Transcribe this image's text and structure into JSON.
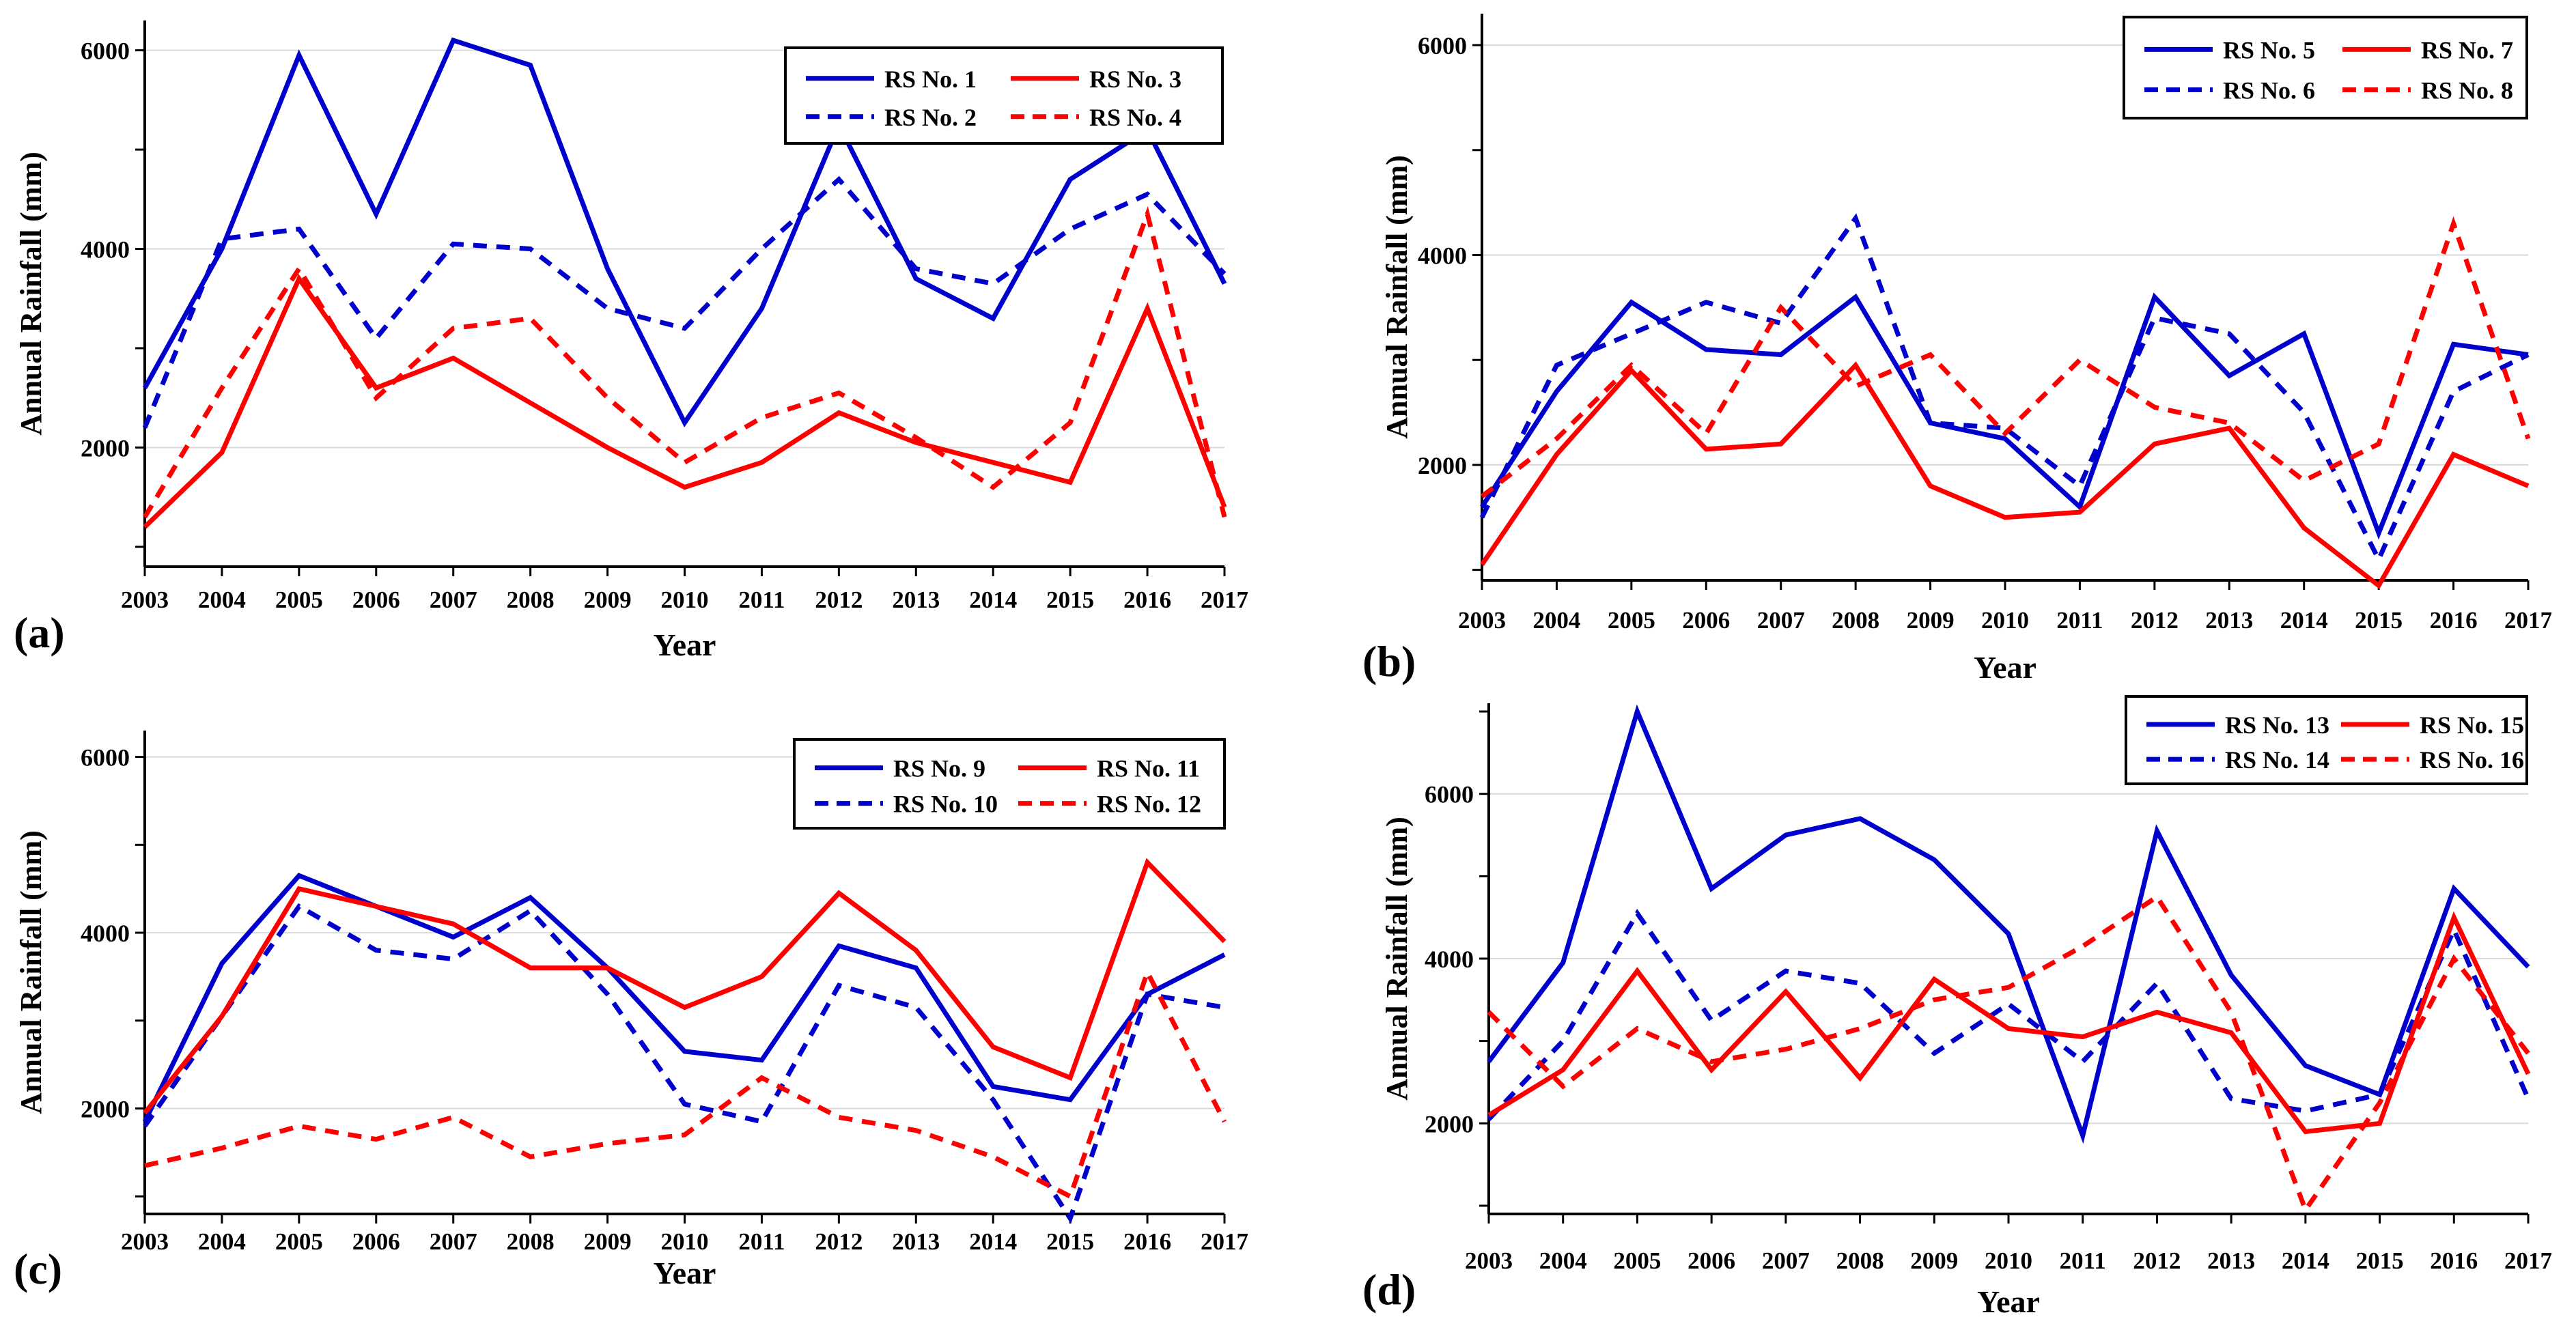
{
  "chart_data": [
    {
      "panel_label": "(a)",
      "type": "line",
      "xlabel": "Year",
      "ylabel": "Annual Rainfall (mm)",
      "ylim": [
        800,
        6300
      ],
      "yticks": [
        2000,
        4000,
        6000
      ],
      "categories": [
        "2003",
        "2004",
        "2005",
        "2006",
        "2007",
        "2008",
        "2009",
        "2010",
        "2011",
        "2012",
        "2013",
        "2014",
        "2015",
        "2016",
        "2017"
      ],
      "legend_position": "top-right",
      "series": [
        {
          "name": "RS No. 1",
          "color": "#0000cc",
          "dashed": false,
          "values": [
            2600,
            4000,
            5950,
            4350,
            6100,
            5850,
            3800,
            2250,
            3400,
            5250,
            3700,
            3300,
            4700,
            5200,
            3650
          ]
        },
        {
          "name": "RS No. 2",
          "color": "#0000cc",
          "dashed": true,
          "values": [
            2200,
            4100,
            4200,
            3100,
            4050,
            4000,
            3400,
            3200,
            4000,
            4700,
            3800,
            3650,
            4200,
            4550,
            3750
          ]
        },
        {
          "name": "RS No. 3",
          "color": "#ff0000",
          "dashed": false,
          "values": [
            1200,
            1950,
            3700,
            2600,
            2900,
            2450,
            2000,
            1600,
            1850,
            2350,
            2050,
            1850,
            1650,
            3400,
            1400
          ]
        },
        {
          "name": "RS No. 4",
          "color": "#ff0000",
          "dashed": true,
          "values": [
            1300,
            2600,
            3800,
            2500,
            3200,
            3300,
            2500,
            1850,
            2300,
            2550,
            2100,
            1600,
            2250,
            4350,
            1300
          ]
        }
      ]
    },
    {
      "panel_label": "(b)",
      "type": "line",
      "xlabel": "Year",
      "ylabel": "Annual Rainfall (mm)",
      "ylim": [
        900,
        6300
      ],
      "yticks": [
        2000,
        4000,
        6000
      ],
      "categories": [
        "2003",
        "2004",
        "2005",
        "2006",
        "2007",
        "2008",
        "2009",
        "2010",
        "2011",
        "2012",
        "2013",
        "2014",
        "2015",
        "2016",
        "2017"
      ],
      "legend_position": "top-right",
      "series": [
        {
          "name": "RS No. 5",
          "color": "#0000cc",
          "dashed": false,
          "values": [
            1600,
            2700,
            3550,
            3100,
            3050,
            3600,
            2400,
            2250,
            1600,
            3600,
            2850,
            3250,
            1350,
            3150,
            3050
          ]
        },
        {
          "name": "RS No. 6",
          "color": "#0000cc",
          "dashed": true,
          "values": [
            1500,
            2950,
            3250,
            3550,
            3350,
            4350,
            2400,
            2350,
            1800,
            3400,
            3250,
            2500,
            1100,
            2700,
            3050
          ]
        },
        {
          "name": "RS No. 7",
          "color": "#ff0000",
          "dashed": false,
          "values": [
            1050,
            2100,
            2900,
            2150,
            2200,
            2950,
            1800,
            1500,
            1550,
            2200,
            2350,
            1400,
            850,
            2100,
            1800
          ]
        },
        {
          "name": "RS No. 8",
          "color": "#ff0000",
          "dashed": true,
          "values": [
            1700,
            2250,
            2950,
            2300,
            3500,
            2750,
            3050,
            2300,
            3000,
            2550,
            2400,
            1850,
            2200,
            4300,
            2250
          ]
        }
      ]
    },
    {
      "panel_label": "(c)",
      "type": "line",
      "xlabel": "Year",
      "ylabel": "Annual Rainfall (mm)",
      "ylim": [
        800,
        6300
      ],
      "yticks": [
        2000,
        4000,
        6000
      ],
      "categories": [
        "2003",
        "2004",
        "2005",
        "2006",
        "2007",
        "2008",
        "2009",
        "2010",
        "2011",
        "2012",
        "2013",
        "2014",
        "2015",
        "2016",
        "2017"
      ],
      "legend_position": "top-right",
      "series": [
        {
          "name": "RS No. 9",
          "color": "#0000cc",
          "dashed": false,
          "values": [
            1850,
            3650,
            4650,
            4300,
            3950,
            4400,
            3600,
            2650,
            2550,
            3850,
            3600,
            2250,
            2100,
            3300,
            3750
          ]
        },
        {
          "name": "RS No. 10",
          "color": "#0000cc",
          "dashed": true,
          "values": [
            1800,
            3050,
            4300,
            3800,
            3700,
            4250,
            3300,
            2050,
            1850,
            3400,
            3150,
            2100,
            750,
            3300,
            3150
          ]
        },
        {
          "name": "RS No. 11",
          "color": "#ff0000",
          "dashed": false,
          "values": [
            1950,
            3050,
            4500,
            4300,
            4100,
            3600,
            3600,
            3150,
            3500,
            4450,
            3800,
            2700,
            2350,
            4800,
            3900
          ]
        },
        {
          "name": "RS No. 12",
          "color": "#ff0000",
          "dashed": true,
          "values": [
            1350,
            1550,
            1800,
            1650,
            1900,
            1450,
            1600,
            1700,
            2350,
            1900,
            1750,
            1450,
            1000,
            3550,
            1850
          ]
        }
      ]
    },
    {
      "panel_label": "(d)",
      "type": "line",
      "xlabel": "Year",
      "ylabel": "Annual Rainfall (mm)",
      "ylim": [
        900,
        7100
      ],
      "yticks": [
        2000,
        4000,
        6000
      ],
      "categories": [
        "2003",
        "2004",
        "2005",
        "2006",
        "2007",
        "2008",
        "2009",
        "2010",
        "2011",
        "2012",
        "2013",
        "2014",
        "2015",
        "2016",
        "2017"
      ],
      "legend_position": "top-right",
      "series": [
        {
          "name": "RS No. 13",
          "color": "#0000cc",
          "dashed": false,
          "values": [
            2750,
            3950,
            7000,
            4850,
            5500,
            5700,
            5200,
            4300,
            1850,
            5550,
            3800,
            2700,
            2350,
            4850,
            3900
          ]
        },
        {
          "name": "RS No. 14",
          "color": "#0000cc",
          "dashed": true,
          "values": [
            2050,
            3000,
            4550,
            3250,
            3850,
            3700,
            2850,
            3450,
            2750,
            3700,
            2300,
            2150,
            2350,
            4350,
            2300
          ]
        },
        {
          "name": "RS No. 15",
          "color": "#ff0000",
          "dashed": false,
          "values": [
            2100,
            2650,
            3850,
            2650,
            3600,
            2550,
            3750,
            3150,
            3050,
            3350,
            3100,
            1900,
            2000,
            4500,
            2600
          ]
        },
        {
          "name": "RS No. 16",
          "color": "#ff0000",
          "dashed": true,
          "values": [
            3350,
            2450,
            3150,
            2750,
            2900,
            3150,
            3500,
            3650,
            4150,
            4750,
            3350,
            950,
            2250,
            4000,
            2850
          ]
        }
      ]
    }
  ]
}
